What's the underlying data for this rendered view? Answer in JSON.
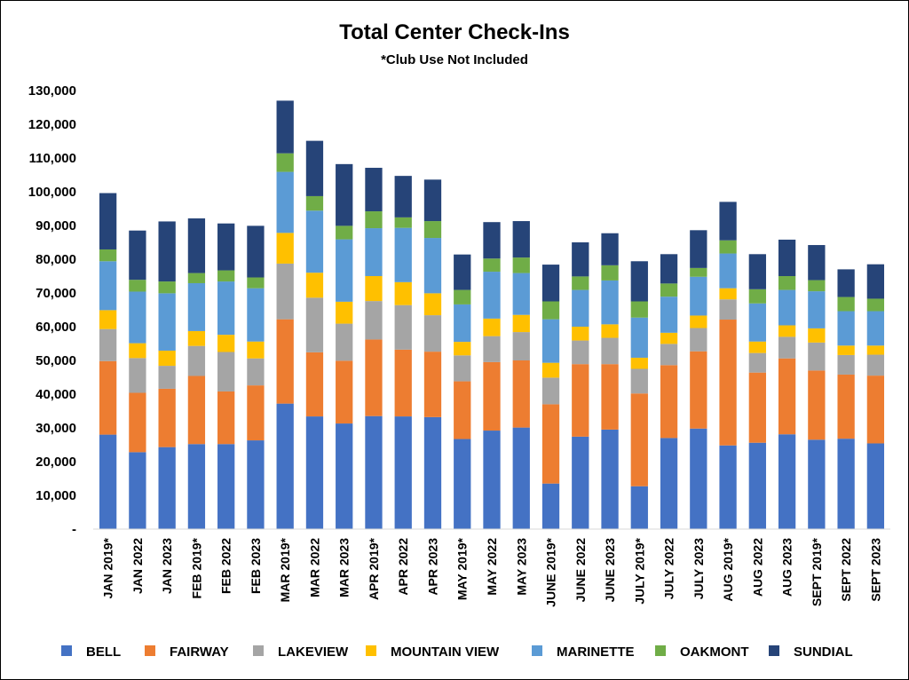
{
  "chart_data": {
    "type": "bar",
    "stacked": true,
    "title": "Total Center Check-Ins",
    "subtitle": "*Club Use Not Included",
    "xlabel": "",
    "ylabel": "",
    "ylim": [
      0,
      130000
    ],
    "yticks": [
      "-",
      "10,000",
      "20,000",
      "30,000",
      "40,000",
      "50,000",
      "60,000",
      "70,000",
      "80,000",
      "90,000",
      "100,000",
      "110,000",
      "120,000",
      "130,000"
    ],
    "grid": false,
    "legend_position": "bottom",
    "categories": [
      "JAN 2019*",
      "JAN 2022",
      "JAN 2023",
      "FEB 2019*",
      "FEB 2022",
      "FEB 2023",
      "MAR 2019*",
      "MAR 2022",
      "MAR 2023",
      "APR 2019*",
      "APR 2022",
      "APR 2023",
      "MAY 2019*",
      "MAY 2022",
      "MAY 2023",
      "JUNE 2019*",
      "JUNE 2022",
      "JUNE 2023",
      "JULY 2019*",
      "JULY 2022",
      "JULY 2023",
      "AUG 2019*",
      "AUG 2022",
      "AUG 2023",
      "SEPT 2019*",
      "SEPT 2022",
      "SEPT 2023"
    ],
    "series": [
      {
        "name": "BELL",
        "color": "#4472C4",
        "values": [
          28000,
          22800,
          24300,
          25200,
          25200,
          26300,
          37200,
          33400,
          31300,
          33500,
          33400,
          33200,
          26700,
          29200,
          30100,
          13500,
          27400,
          29500,
          12700,
          27000,
          29800,
          24800,
          25600,
          28100,
          26500,
          26800,
          25400
        ]
      },
      {
        "name": "FAIRWAY",
        "color": "#ED7D31",
        "values": [
          21800,
          17600,
          17300,
          20200,
          15600,
          16300,
          25000,
          19000,
          18600,
          22700,
          19800,
          19400,
          17100,
          20300,
          19900,
          23500,
          21500,
          19400,
          27500,
          21600,
          22900,
          37300,
          20800,
          22500,
          20500,
          19000,
          20100
        ]
      },
      {
        "name": "LAKEVIEW",
        "color": "#A5A5A5",
        "values": [
          9500,
          10300,
          6800,
          8900,
          11700,
          8000,
          16500,
          16200,
          11000,
          11400,
          13200,
          10800,
          7700,
          7700,
          8400,
          7900,
          7000,
          7800,
          7300,
          6300,
          6900,
          6000,
          5800,
          6400,
          8300,
          5800,
          6200
        ]
      },
      {
        "name": "MOUNTAIN VIEW",
        "color": "#FFC000",
        "values": [
          5600,
          4400,
          4500,
          4400,
          5100,
          5000,
          9100,
          7400,
          6500,
          7400,
          6800,
          6500,
          4000,
          5200,
          5100,
          4400,
          4100,
          4000,
          3300,
          3300,
          3700,
          3300,
          3400,
          3400,
          4200,
          2800,
          2700
        ]
      },
      {
        "name": "MARINETTE",
        "color": "#5B9BD5",
        "values": [
          14500,
          15300,
          17000,
          14200,
          15800,
          15800,
          18100,
          18400,
          18500,
          14200,
          16100,
          16400,
          11100,
          13900,
          12400,
          12900,
          10900,
          13000,
          11900,
          10700,
          11500,
          10300,
          11300,
          10500,
          11000,
          10200,
          10200
        ]
      },
      {
        "name": "OAKMONT",
        "color": "#70AD47",
        "values": [
          3500,
          3500,
          3500,
          3000,
          3300,
          3200,
          5500,
          4300,
          4000,
          5000,
          3100,
          5000,
          4300,
          3900,
          4600,
          5300,
          4000,
          4500,
          4800,
          3900,
          2600,
          3900,
          4200,
          4100,
          3300,
          4200,
          3700
        ]
      },
      {
        "name": "SUNDIAL",
        "color": "#264478",
        "values": [
          16700,
          14600,
          17800,
          16200,
          13900,
          15300,
          15600,
          16400,
          18300,
          12900,
          12300,
          12300,
          10500,
          10800,
          10800,
          10900,
          10100,
          9500,
          11900,
          8700,
          11200,
          11400,
          10400,
          10800,
          10400,
          8200,
          10200
        ]
      }
    ]
  }
}
